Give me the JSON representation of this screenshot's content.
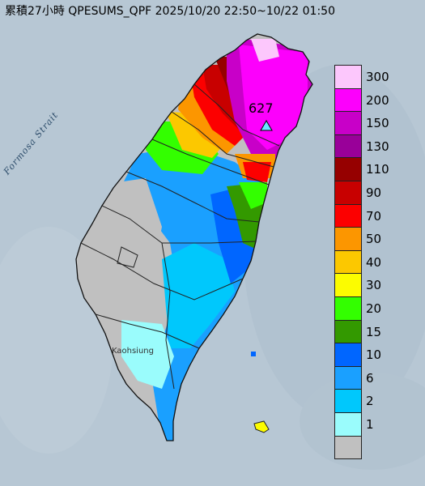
{
  "title": "累積27小時 QPESUMS_QPF 2025/10/20 22:50~10/22 01:50",
  "strait_label": "Formosa Strait",
  "peak_label": "627",
  "kaohsiung_label": "Kaohsiung",
  "legend": {
    "items": [
      {
        "label": "300",
        "color": "#fcc7fc"
      },
      {
        "label": "200",
        "color": "#fc00fc"
      },
      {
        "label": "150",
        "color": "#c800c8"
      },
      {
        "label": "130",
        "color": "#990099"
      },
      {
        "label": "110",
        "color": "#960000"
      },
      {
        "label": "90",
        "color": "#c80000"
      },
      {
        "label": "70",
        "color": "#fc0000"
      },
      {
        "label": "50",
        "color": "#fc9600"
      },
      {
        "label": "40",
        "color": "#fcc800"
      },
      {
        "label": "30",
        "color": "#fcfc00"
      },
      {
        "label": "20",
        "color": "#33ff00"
      },
      {
        "label": "15",
        "color": "#339900"
      },
      {
        "label": "10",
        "color": "#0066ff"
      },
      {
        "label": "6",
        "color": "#1aa0ff"
      },
      {
        "label": "2",
        "color": "#00c8fc"
      },
      {
        "label": "1",
        "color": "#9afcfc"
      },
      {
        "label": "",
        "color": "#c0c0c0"
      }
    ]
  }
}
